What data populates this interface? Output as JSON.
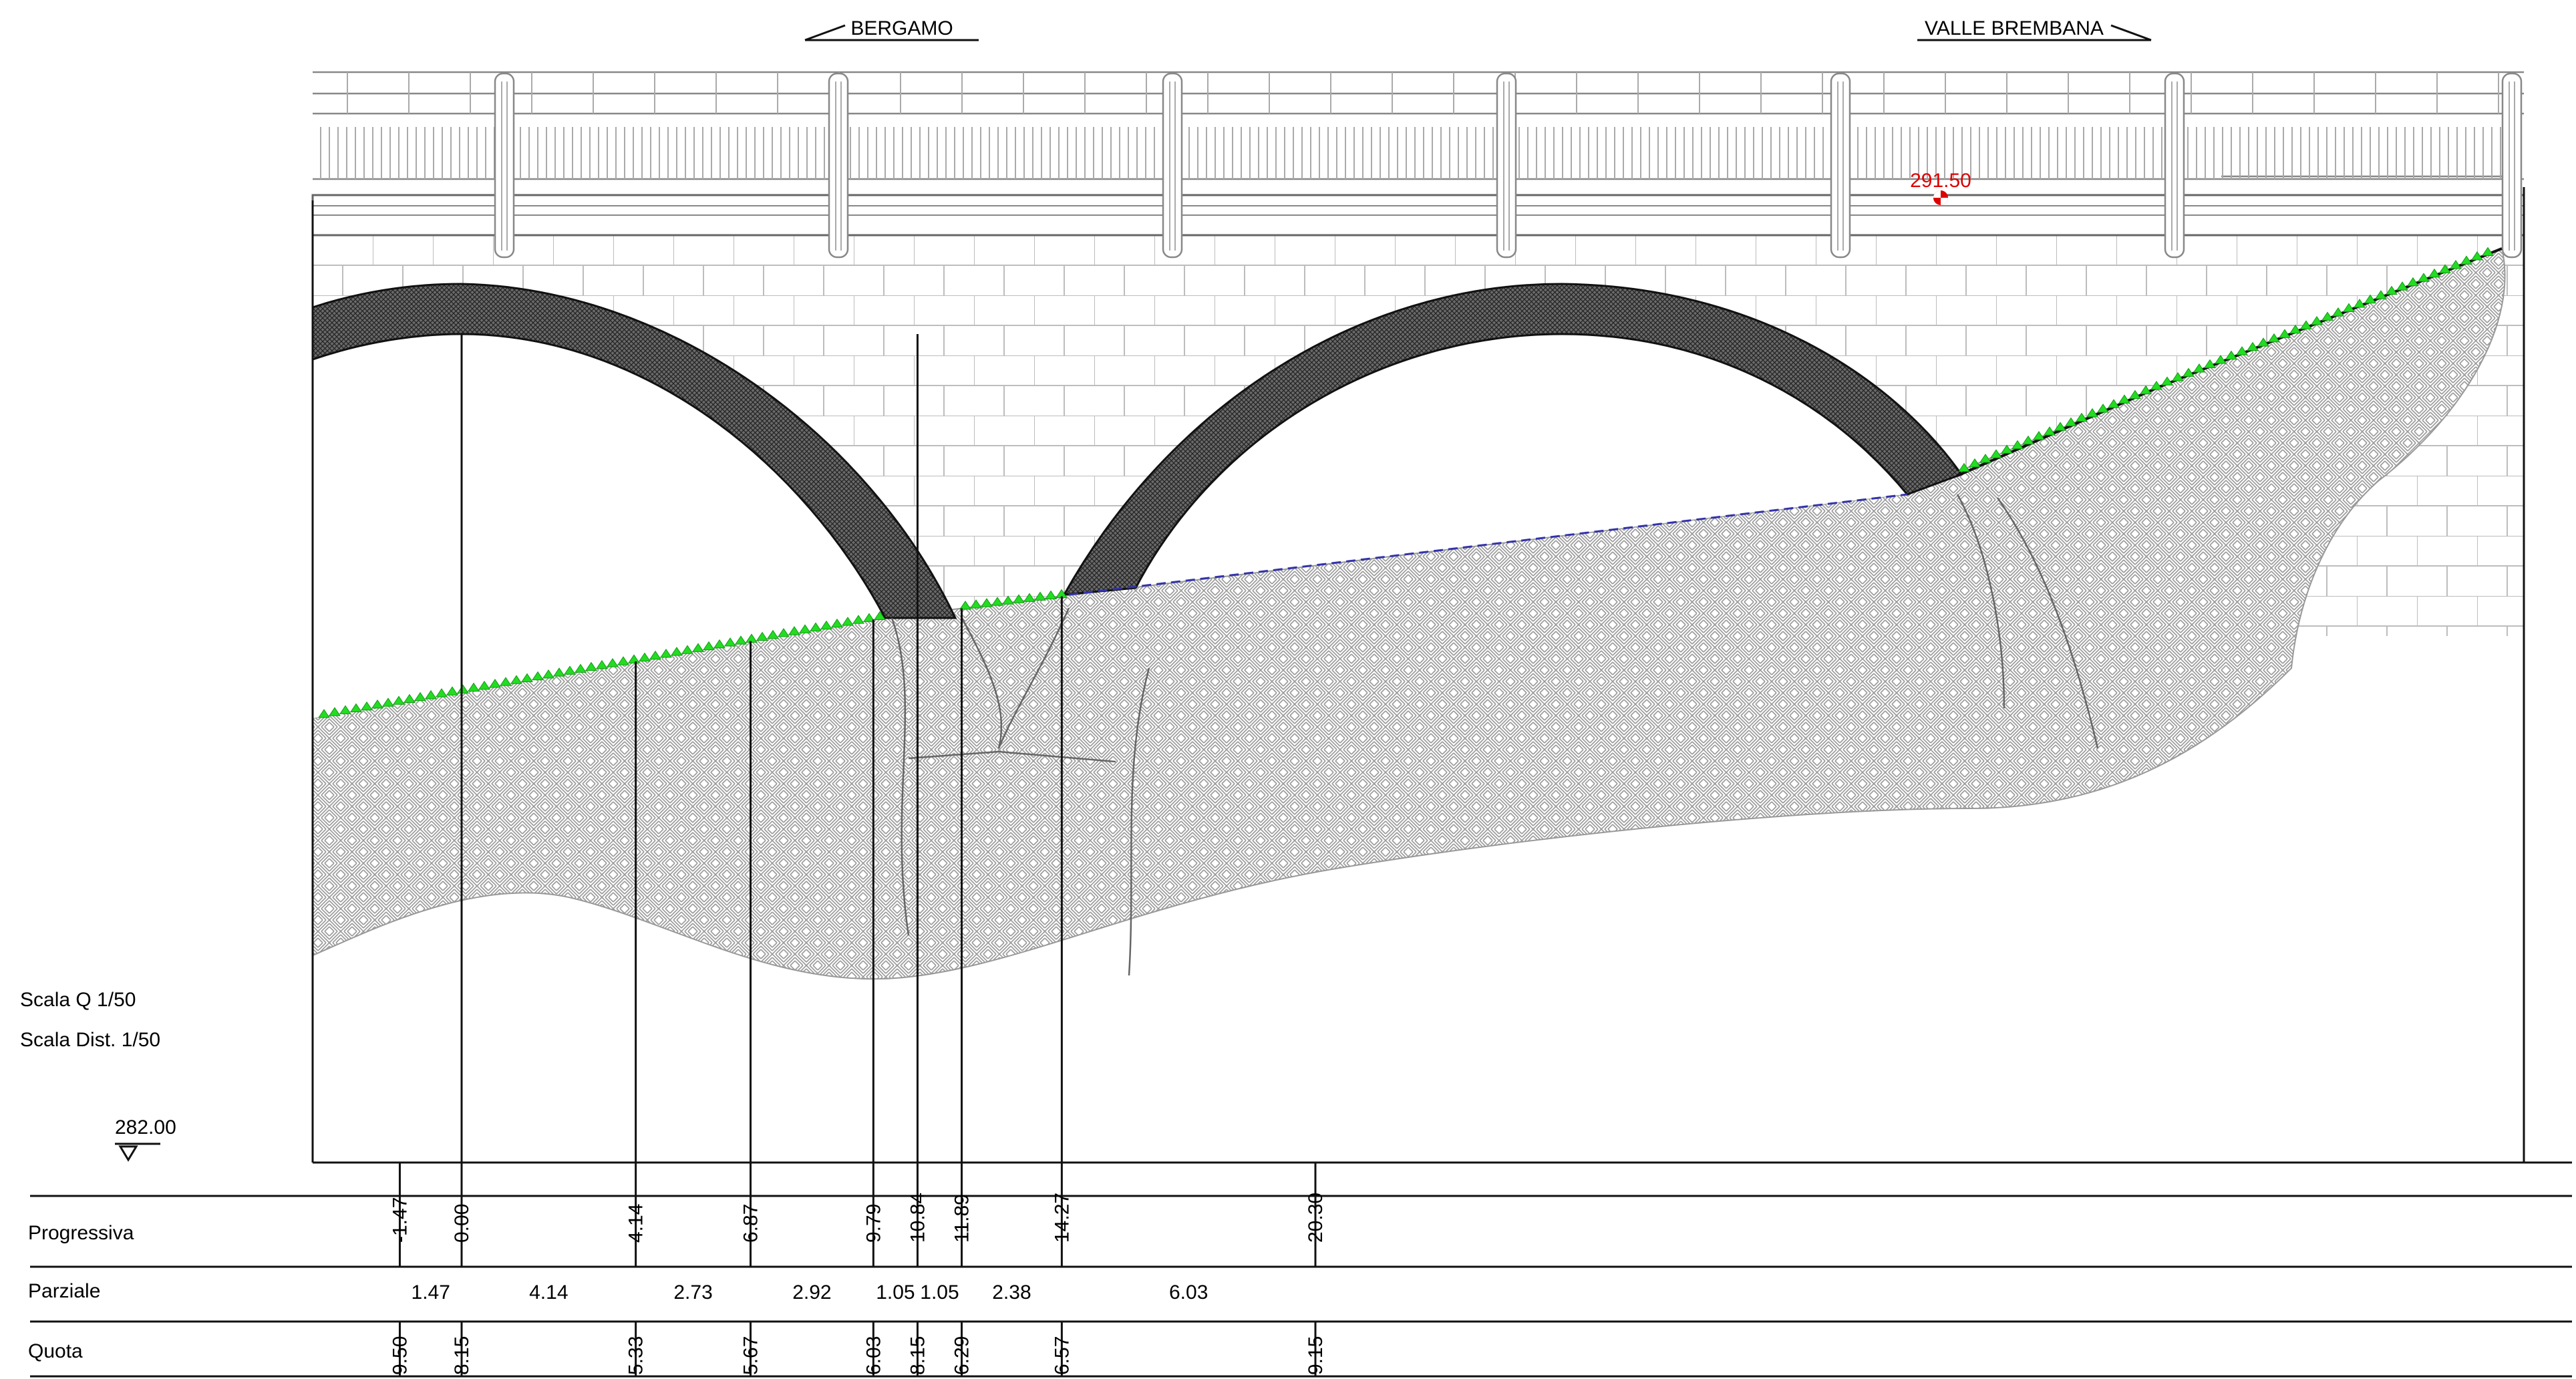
{
  "directions": {
    "left": "BERGAMO",
    "right": "VALLE BREMBANA"
  },
  "elevation_marker": "291.50",
  "scale": {
    "vertical": "Scala Q 1/50",
    "horizontal": "Scala Dist. 1/50"
  },
  "datum": "282.00",
  "table": {
    "row_labels": {
      "progressiva": "Progressiva",
      "parziale": "Parziale",
      "quota": "Quota"
    },
    "progressive": [
      "-1.47",
      "0.00",
      "4.14",
      "6.87",
      "9.79",
      "10.84",
      "11.89",
      "14.27",
      "20.30"
    ],
    "partials": [
      "1.47",
      "4.14",
      "2.73",
      "2.92",
      "1.05",
      "1.05",
      "2.38",
      "6.03"
    ],
    "quote": [
      "9.50",
      "8.15",
      "5.33",
      "5.67",
      "6.03",
      "8.15",
      "6.29",
      "6.57",
      "9.15"
    ]
  },
  "colors": {
    "grass": "#22dd22",
    "marker": "#dd0000",
    "waterline": "#3333aa",
    "arch": "#555555"
  }
}
